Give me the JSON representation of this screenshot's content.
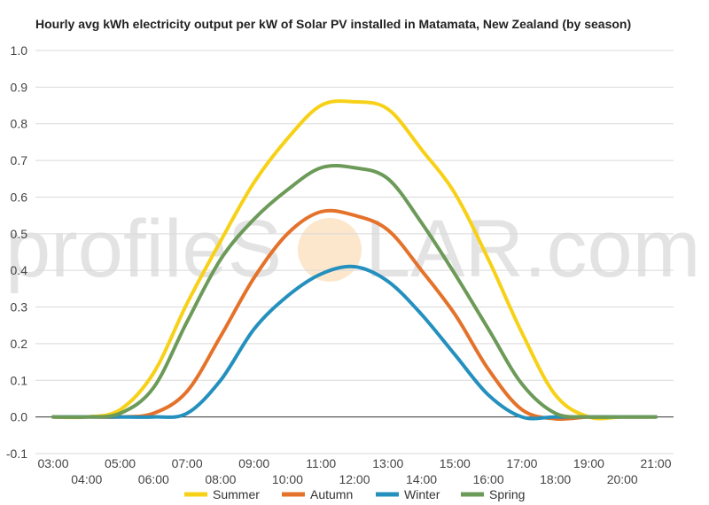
{
  "chart_data": {
    "type": "line",
    "title": "Hourly avg kWh electricity output per kW of Solar PV installed in Matamata, New Zealand (by season)",
    "xlabel": "",
    "ylabel": "",
    "ylim": [
      -0.1,
      1.0
    ],
    "yticks": [
      "1.0",
      "0.9",
      "0.8",
      "0.7",
      "0.6",
      "0.5",
      "0.4",
      "0.3",
      "0.2",
      "0.1",
      "0.0",
      "-0.1"
    ],
    "yticks_values": [
      1.0,
      0.9,
      0.8,
      0.7,
      0.6,
      0.5,
      0.4,
      0.3,
      0.2,
      0.1,
      0.0,
      -0.1
    ],
    "x": [
      "03:00",
      "04:00",
      "05:00",
      "06:00",
      "07:00",
      "08:00",
      "09:00",
      "10:00",
      "11:00",
      "12:00",
      "13:00",
      "14:00",
      "15:00",
      "16:00",
      "17:00",
      "18:00",
      "19:00",
      "20:00",
      "21:00"
    ],
    "grid": true,
    "legend": "bottom",
    "series": [
      {
        "name": "Summer",
        "color": "#f7d117",
        "values": [
          0,
          0,
          0.02,
          0.12,
          0.31,
          0.48,
          0.64,
          0.76,
          0.85,
          0.86,
          0.84,
          0.73,
          0.61,
          0.43,
          0.23,
          0.06,
          0.0,
          0,
          0
        ]
      },
      {
        "name": "Autumn",
        "color": "#e4722a",
        "values": [
          0,
          0,
          0,
          0.01,
          0.07,
          0.22,
          0.38,
          0.5,
          0.56,
          0.55,
          0.51,
          0.4,
          0.28,
          0.13,
          0.02,
          -0.005,
          0,
          0,
          0
        ]
      },
      {
        "name": "Winter",
        "color": "#2490be",
        "values": [
          0,
          0,
          0,
          0,
          0.01,
          0.1,
          0.24,
          0.33,
          0.39,
          0.41,
          0.37,
          0.28,
          0.17,
          0.06,
          0.0,
          0,
          0,
          0,
          0
        ]
      },
      {
        "name": "Spring",
        "color": "#6c9a58",
        "values": [
          0,
          0,
          0.01,
          0.08,
          0.26,
          0.43,
          0.54,
          0.62,
          0.68,
          0.68,
          0.65,
          0.53,
          0.39,
          0.24,
          0.09,
          0.01,
          0,
          0,
          0
        ]
      }
    ],
    "watermark": "profileSOLAR.com"
  }
}
